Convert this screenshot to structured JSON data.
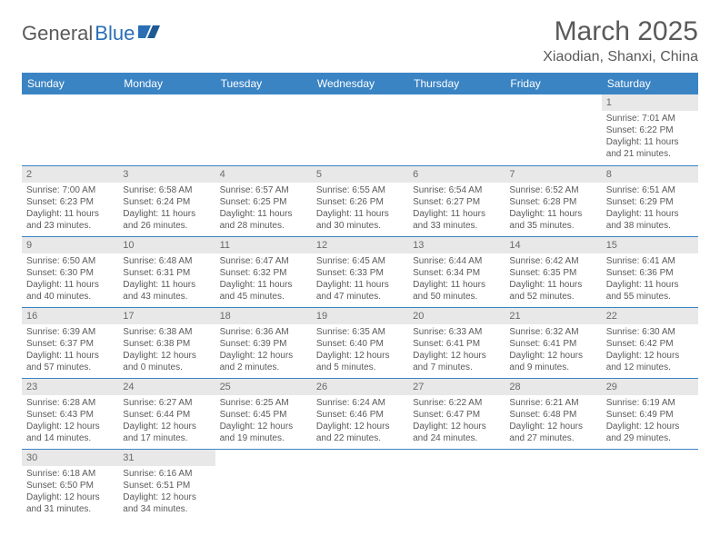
{
  "brand": {
    "part1": "General",
    "part2": "Blue"
  },
  "title": "March 2025",
  "location": "Xiaodian, Shanxi, China",
  "colors": {
    "header_bg": "#3b84c4",
    "header_text": "#ffffff",
    "line": "#3b84c4",
    "daynum_bg": "#e8e8e8",
    "text": "#5a5a5a",
    "brand_accent": "#2a6fb5"
  },
  "weekdays": [
    "Sunday",
    "Monday",
    "Tuesday",
    "Wednesday",
    "Thursday",
    "Friday",
    "Saturday"
  ],
  "weeks": [
    [
      null,
      null,
      null,
      null,
      null,
      null,
      {
        "d": "1",
        "sr": "Sunrise: 7:01 AM",
        "ss": "Sunset: 6:22 PM",
        "dl": "Daylight: 11 hours and 21 minutes."
      }
    ],
    [
      {
        "d": "2",
        "sr": "Sunrise: 7:00 AM",
        "ss": "Sunset: 6:23 PM",
        "dl": "Daylight: 11 hours and 23 minutes."
      },
      {
        "d": "3",
        "sr": "Sunrise: 6:58 AM",
        "ss": "Sunset: 6:24 PM",
        "dl": "Daylight: 11 hours and 26 minutes."
      },
      {
        "d": "4",
        "sr": "Sunrise: 6:57 AM",
        "ss": "Sunset: 6:25 PM",
        "dl": "Daylight: 11 hours and 28 minutes."
      },
      {
        "d": "5",
        "sr": "Sunrise: 6:55 AM",
        "ss": "Sunset: 6:26 PM",
        "dl": "Daylight: 11 hours and 30 minutes."
      },
      {
        "d": "6",
        "sr": "Sunrise: 6:54 AM",
        "ss": "Sunset: 6:27 PM",
        "dl": "Daylight: 11 hours and 33 minutes."
      },
      {
        "d": "7",
        "sr": "Sunrise: 6:52 AM",
        "ss": "Sunset: 6:28 PM",
        "dl": "Daylight: 11 hours and 35 minutes."
      },
      {
        "d": "8",
        "sr": "Sunrise: 6:51 AM",
        "ss": "Sunset: 6:29 PM",
        "dl": "Daylight: 11 hours and 38 minutes."
      }
    ],
    [
      {
        "d": "9",
        "sr": "Sunrise: 6:50 AM",
        "ss": "Sunset: 6:30 PM",
        "dl": "Daylight: 11 hours and 40 minutes."
      },
      {
        "d": "10",
        "sr": "Sunrise: 6:48 AM",
        "ss": "Sunset: 6:31 PM",
        "dl": "Daylight: 11 hours and 43 minutes."
      },
      {
        "d": "11",
        "sr": "Sunrise: 6:47 AM",
        "ss": "Sunset: 6:32 PM",
        "dl": "Daylight: 11 hours and 45 minutes."
      },
      {
        "d": "12",
        "sr": "Sunrise: 6:45 AM",
        "ss": "Sunset: 6:33 PM",
        "dl": "Daylight: 11 hours and 47 minutes."
      },
      {
        "d": "13",
        "sr": "Sunrise: 6:44 AM",
        "ss": "Sunset: 6:34 PM",
        "dl": "Daylight: 11 hours and 50 minutes."
      },
      {
        "d": "14",
        "sr": "Sunrise: 6:42 AM",
        "ss": "Sunset: 6:35 PM",
        "dl": "Daylight: 11 hours and 52 minutes."
      },
      {
        "d": "15",
        "sr": "Sunrise: 6:41 AM",
        "ss": "Sunset: 6:36 PM",
        "dl": "Daylight: 11 hours and 55 minutes."
      }
    ],
    [
      {
        "d": "16",
        "sr": "Sunrise: 6:39 AM",
        "ss": "Sunset: 6:37 PM",
        "dl": "Daylight: 11 hours and 57 minutes."
      },
      {
        "d": "17",
        "sr": "Sunrise: 6:38 AM",
        "ss": "Sunset: 6:38 PM",
        "dl": "Daylight: 12 hours and 0 minutes."
      },
      {
        "d": "18",
        "sr": "Sunrise: 6:36 AM",
        "ss": "Sunset: 6:39 PM",
        "dl": "Daylight: 12 hours and 2 minutes."
      },
      {
        "d": "19",
        "sr": "Sunrise: 6:35 AM",
        "ss": "Sunset: 6:40 PM",
        "dl": "Daylight: 12 hours and 5 minutes."
      },
      {
        "d": "20",
        "sr": "Sunrise: 6:33 AM",
        "ss": "Sunset: 6:41 PM",
        "dl": "Daylight: 12 hours and 7 minutes."
      },
      {
        "d": "21",
        "sr": "Sunrise: 6:32 AM",
        "ss": "Sunset: 6:41 PM",
        "dl": "Daylight: 12 hours and 9 minutes."
      },
      {
        "d": "22",
        "sr": "Sunrise: 6:30 AM",
        "ss": "Sunset: 6:42 PM",
        "dl": "Daylight: 12 hours and 12 minutes."
      }
    ],
    [
      {
        "d": "23",
        "sr": "Sunrise: 6:28 AM",
        "ss": "Sunset: 6:43 PM",
        "dl": "Daylight: 12 hours and 14 minutes."
      },
      {
        "d": "24",
        "sr": "Sunrise: 6:27 AM",
        "ss": "Sunset: 6:44 PM",
        "dl": "Daylight: 12 hours and 17 minutes."
      },
      {
        "d": "25",
        "sr": "Sunrise: 6:25 AM",
        "ss": "Sunset: 6:45 PM",
        "dl": "Daylight: 12 hours and 19 minutes."
      },
      {
        "d": "26",
        "sr": "Sunrise: 6:24 AM",
        "ss": "Sunset: 6:46 PM",
        "dl": "Daylight: 12 hours and 22 minutes."
      },
      {
        "d": "27",
        "sr": "Sunrise: 6:22 AM",
        "ss": "Sunset: 6:47 PM",
        "dl": "Daylight: 12 hours and 24 minutes."
      },
      {
        "d": "28",
        "sr": "Sunrise: 6:21 AM",
        "ss": "Sunset: 6:48 PM",
        "dl": "Daylight: 12 hours and 27 minutes."
      },
      {
        "d": "29",
        "sr": "Sunrise: 6:19 AM",
        "ss": "Sunset: 6:49 PM",
        "dl": "Daylight: 12 hours and 29 minutes."
      }
    ],
    [
      {
        "d": "30",
        "sr": "Sunrise: 6:18 AM",
        "ss": "Sunset: 6:50 PM",
        "dl": "Daylight: 12 hours and 31 minutes."
      },
      {
        "d": "31",
        "sr": "Sunrise: 6:16 AM",
        "ss": "Sunset: 6:51 PM",
        "dl": "Daylight: 12 hours and 34 minutes."
      },
      null,
      null,
      null,
      null,
      null
    ]
  ]
}
